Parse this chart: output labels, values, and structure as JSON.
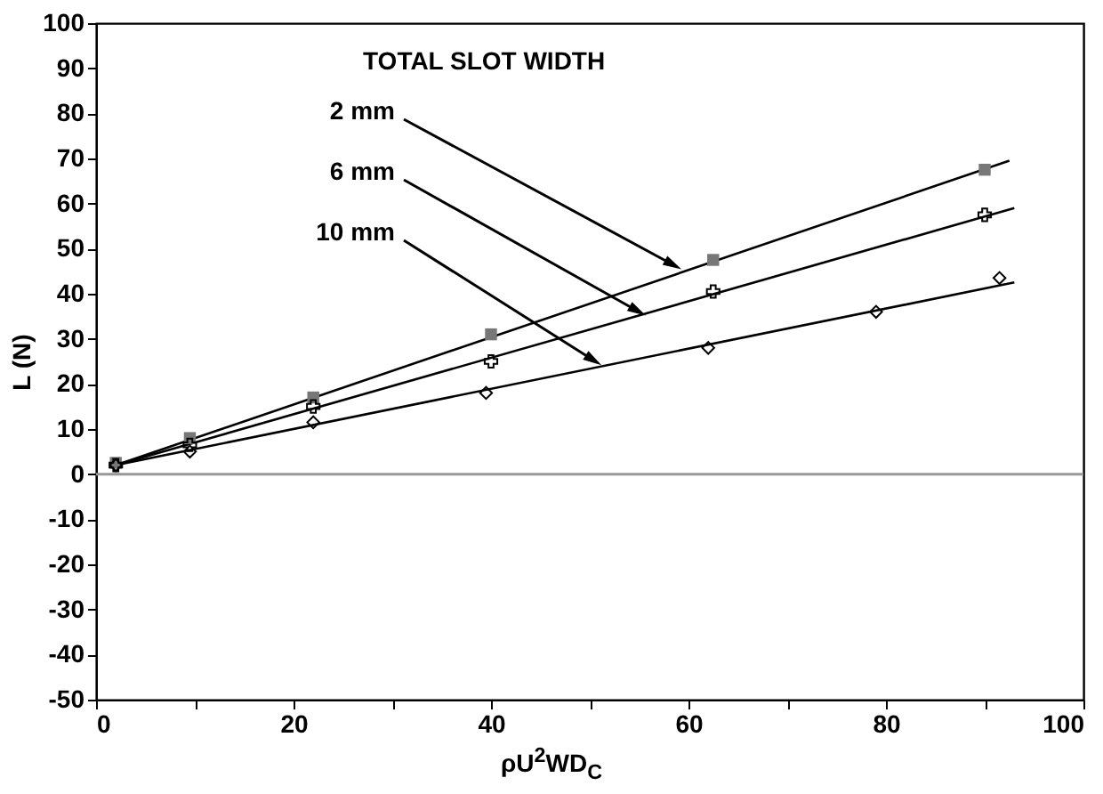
{
  "chart_data": {
    "type": "scatter",
    "xlabel": "ρU$^{2}$WD$_{C}$",
    "ylabel": "L  (N)",
    "xlim": [
      0,
      100
    ],
    "xticks": [
      0,
      {
        "value": 10,
        "label": null
      },
      20,
      {
        "value": 30,
        "label": null
      },
      40,
      {
        "value": 50,
        "label": null
      },
      60,
      {
        "value": 70,
        "label": null
      },
      80,
      {
        "value": 90,
        "label": null
      },
      100
    ],
    "ylim": [
      -50,
      100
    ],
    "yticks": [
      -50,
      -40,
      -30,
      -20,
      -10,
      0,
      10,
      20,
      30,
      40,
      50,
      60,
      70,
      80,
      90,
      100
    ],
    "grid": false,
    "ref_lines": [
      {
        "axis": "y",
        "value": 0,
        "color": "#999999"
      }
    ],
    "annotations": [
      "TOTAL SLOT WIDTH",
      {
        "text": "2 mm",
        "x": 59.4,
        "y": 45.3
      },
      {
        "text": "6 mm",
        "x": 55.8,
        "y": 35
      },
      {
        "text": "10 mm",
        "x": 51.3,
        "y": 24
      }
    ],
    "series": [
      {
        "marker": "square",
        "color": "#777777",
        "x": [
          2,
          9.5,
          22,
          40,
          62.5,
          90
        ],
        "values": [
          2.5,
          8,
          17,
          31,
          47.5,
          67.5
        ]
      },
      {
        "marker": "cross",
        "color": "#000000",
        "x": [
          2,
          9.5,
          22,
          40,
          62.5,
          90
        ],
        "values": [
          2,
          6.5,
          15,
          25,
          40.5,
          57.5
        ]
      },
      {
        "marker": "diamond",
        "color": "#000000",
        "x": [
          2,
          9.5,
          22,
          39.5,
          62,
          79,
          91.5
        ],
        "values": [
          2,
          5,
          11.5,
          18,
          28,
          36,
          43.5
        ]
      },
      {
        "type": "line",
        "marker": "none",
        "color": "#000000",
        "x": [
          2,
          92.5
        ],
        "values": [
          2,
          69.5
        ]
      },
      {
        "type": "line",
        "marker": "none",
        "color": "#000000",
        "x": [
          2,
          93
        ],
        "values": [
          2,
          59
        ]
      },
      {
        "type": "line",
        "marker": "none",
        "color": "#000000",
        "x": [
          2,
          93
        ],
        "values": [
          2,
          42.5
        ]
      }
    ]
  }
}
